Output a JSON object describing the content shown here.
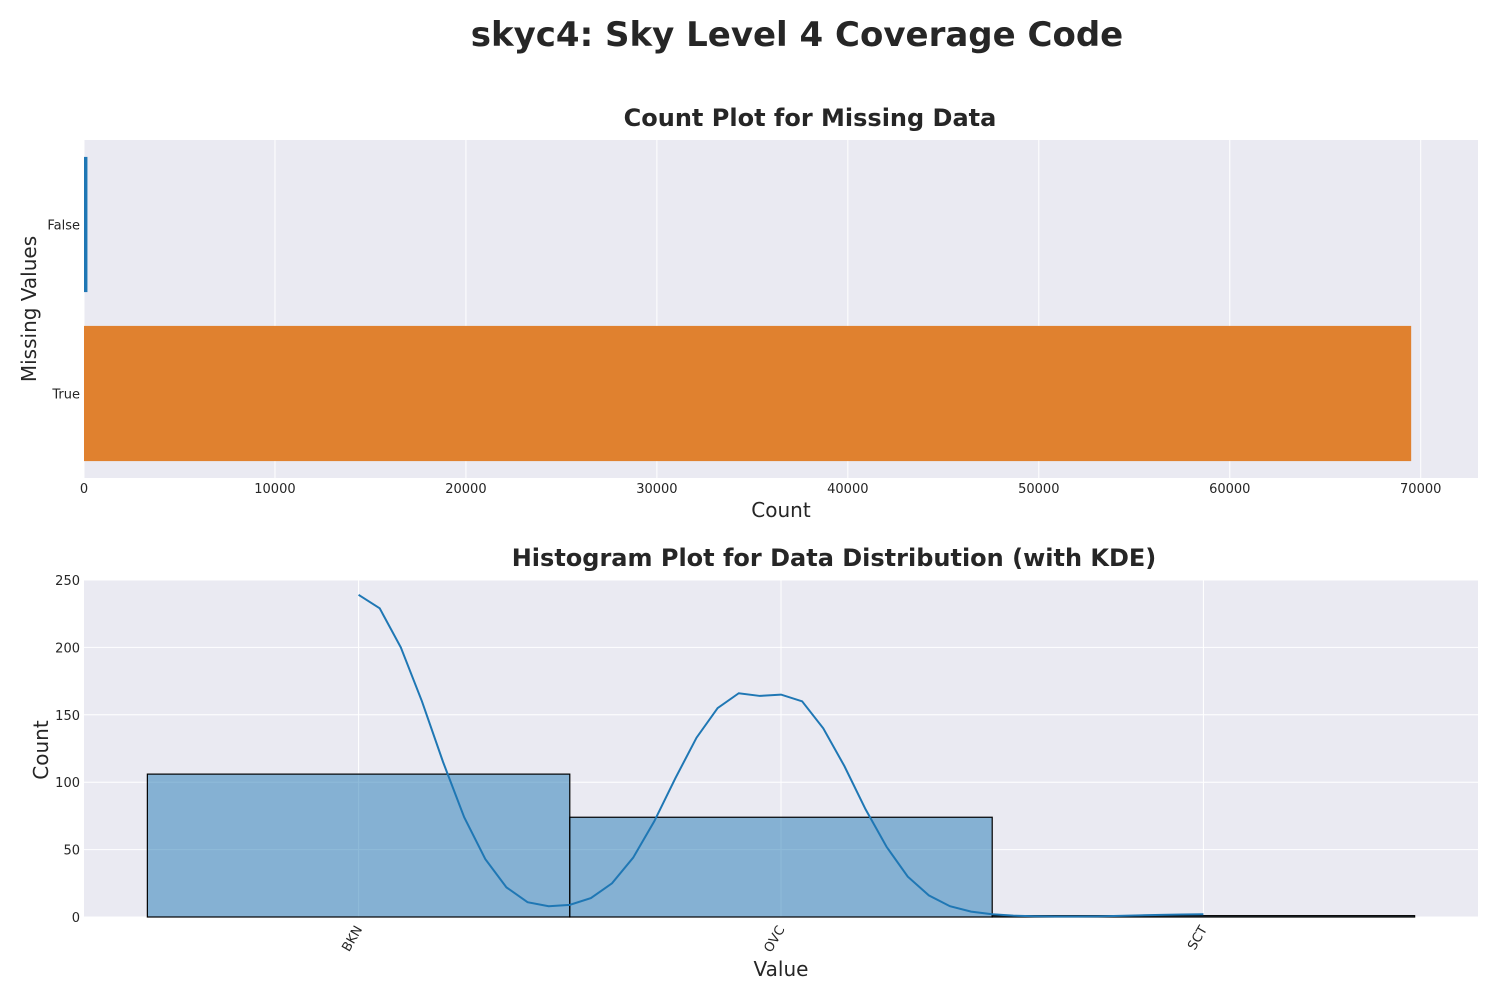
{
  "figure": {
    "title": "skyc4: Sky Level 4 Coverage Code"
  },
  "chart_data": [
    {
      "type": "bar",
      "orientation": "horizontal",
      "title": "Count Plot for Missing Data",
      "xlabel": "Count",
      "ylabel": "Missing Values",
      "categories": [
        "False",
        "True"
      ],
      "values": [
        180,
        69500
      ],
      "colors": [
        "#1f77b4",
        "#e0812f"
      ],
      "xlim": [
        0,
        73000
      ],
      "xticks": [
        0,
        10000,
        20000,
        30000,
        40000,
        50000,
        60000,
        70000
      ],
      "grid": true
    },
    {
      "type": "histogram",
      "title": "Histogram Plot for Data Distribution (with KDE)",
      "xlabel": "Value",
      "ylabel": "Count",
      "categories": [
        "BKN",
        "OVC",
        "SCT"
      ],
      "bins": [
        {
          "start": -0.5,
          "end": 0.5,
          "count": 106
        },
        {
          "start": 0.5,
          "end": 1.5,
          "count": 74
        },
        {
          "start": 1.5,
          "end": 2.5,
          "count": 1
        }
      ],
      "kde": {
        "x": [
          0,
          0.05,
          0.1,
          0.15,
          0.2,
          0.25,
          0.3,
          0.35,
          0.4,
          0.45,
          0.5,
          0.55,
          0.6,
          0.65,
          0.7,
          0.75,
          0.8,
          0.85,
          0.9,
          0.95,
          1.0,
          1.05,
          1.1,
          1.15,
          1.2,
          1.25,
          1.3,
          1.35,
          1.4,
          1.45,
          1.5,
          1.55,
          1.6,
          1.65,
          1.7,
          1.75,
          1.8,
          1.85,
          1.9,
          1.95,
          2.0
        ],
        "y": [
          239,
          229,
          200,
          160,
          115,
          74,
          43,
          22,
          11,
          8,
          9,
          14,
          25,
          44,
          71,
          103,
          133,
          155,
          166,
          164,
          165,
          160,
          140,
          112,
          80,
          52,
          30,
          16,
          8,
          4,
          2,
          1,
          0.6,
          0.4,
          0.4,
          0.5,
          0.8,
          1.2,
          1.6,
          1.9,
          2
        ]
      },
      "bar_color": "#1f77b4",
      "bar_alpha": 0.5,
      "line_color": "#1f77b4",
      "ylim": [
        0,
        250
      ],
      "yticks": [
        0,
        50,
        100,
        150,
        200,
        250
      ],
      "xlim": [
        -0.65,
        2.65
      ],
      "grid": true
    }
  ]
}
